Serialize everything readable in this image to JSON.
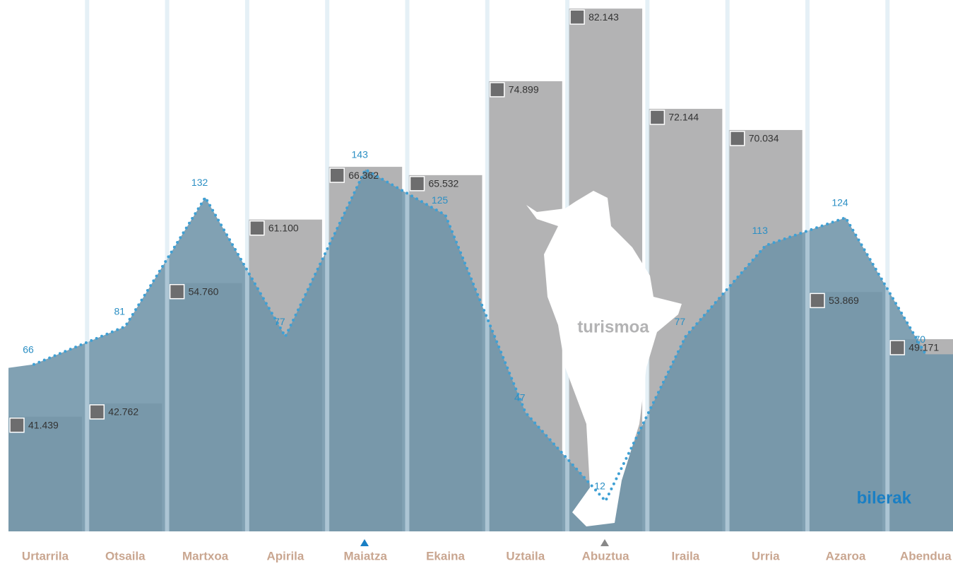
{
  "chart_data": {
    "type": "bar-line",
    "categories": [
      "Urtarrila",
      "Otsaila",
      "Martxoa",
      "Apirila",
      "Maiatza",
      "Ekaina",
      "Uztaila",
      "Abuztua",
      "Iraila",
      "Urria",
      "Azaroa",
      "Abendua"
    ],
    "series": [
      {
        "name": "turismoa",
        "type": "bar",
        "color": "#b3b3b4",
        "values": [
          41439,
          42762,
          54760,
          61100,
          66362,
          65532,
          74899,
          82143,
          72144,
          70034,
          53869,
          49171
        ],
        "value_labels": [
          "41.439",
          "42.762",
          "54.760",
          "61.100",
          "66.362",
          "65.532",
          "74.899",
          "82.143",
          "72.144",
          "70.034",
          "53.869",
          "49.171"
        ]
      },
      {
        "name": "bilerak",
        "type": "line",
        "axis": "y2",
        "color": "#3fa0d4",
        "values": [
          66,
          81,
          132,
          77,
          143,
          125,
          47,
          12,
          77,
          113,
          124,
          70
        ]
      }
    ],
    "ylim": [
      30000,
      83000
    ],
    "y2lim": [
      0,
      210
    ]
  }
}
